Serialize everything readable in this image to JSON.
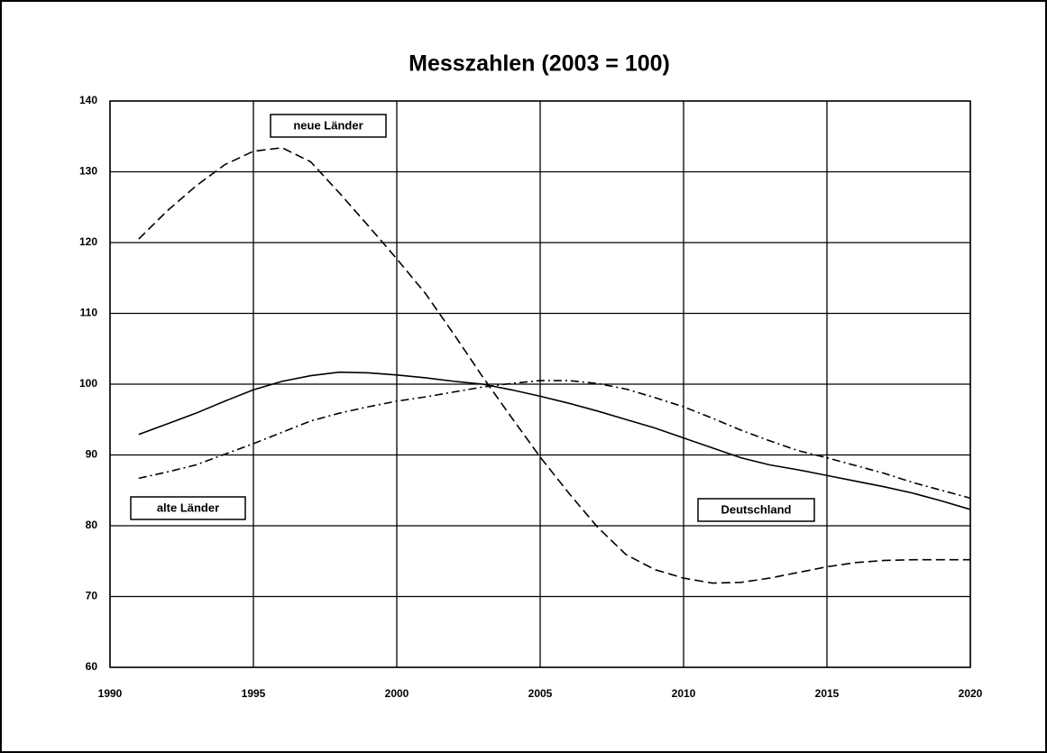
{
  "chart_data": {
    "type": "line",
    "title": "Messzahlen (2003 = 100)",
    "x": [
      1991,
      1992,
      1993,
      1994,
      1995,
      1996,
      1997,
      1998,
      1999,
      2000,
      2001,
      2002,
      2003,
      2004,
      2005,
      2006,
      2007,
      2008,
      2009,
      2010,
      2011,
      2012,
      2013,
      2014,
      2015,
      2016,
      2017,
      2018,
      2019,
      2020
    ],
    "series": [
      {
        "name": "Deutschland",
        "color": "#000000",
        "dash": "solid",
        "values": [
          92.9,
          94.4,
          95.9,
          97.6,
          99.2,
          100.4,
          101.2,
          101.7,
          101.6,
          101.3,
          100.9,
          100.4,
          100,
          99.2,
          98.3,
          97.3,
          96.2,
          95,
          93.8,
          92.4,
          91,
          89.6,
          88.6,
          87.9,
          87.1,
          86.3,
          85.5,
          84.6,
          83.5,
          82.3
        ]
      },
      {
        "name": "alte Länder",
        "color": "#000000",
        "dash": "dashdot",
        "values": [
          86.7,
          87.6,
          88.6,
          90.1,
          91.6,
          93.2,
          94.8,
          95.9,
          96.8,
          97.6,
          98.2,
          98.9,
          99.6,
          100.1,
          100.5,
          100.5,
          100.1,
          99.3,
          98.1,
          96.8,
          95.2,
          93.5,
          92,
          90.6,
          89.6,
          88.5,
          87.4,
          86.1,
          85,
          83.9
        ]
      },
      {
        "name": "neue Länder",
        "color": "#000000",
        "dash": "dashed",
        "values": [
          120.5,
          124.5,
          128,
          131,
          132.9,
          133.4,
          131.4,
          127,
          122.4,
          117.7,
          112.8,
          107,
          101,
          95.3,
          89.7,
          84.6,
          79.8,
          75.9,
          73.8,
          72.6,
          71.9,
          72,
          72.6,
          73.4,
          74.2,
          74.8,
          75.1,
          75.2,
          75.2,
          75.2
        ]
      }
    ],
    "xlim": [
      1990,
      2020
    ],
    "xticks": [
      1990,
      1995,
      2000,
      2005,
      2010,
      2015,
      2020
    ],
    "ylim": [
      60,
      140
    ],
    "yticks": [
      60,
      70,
      80,
      90,
      100,
      110,
      120,
      130,
      140
    ],
    "grid": true
  }
}
